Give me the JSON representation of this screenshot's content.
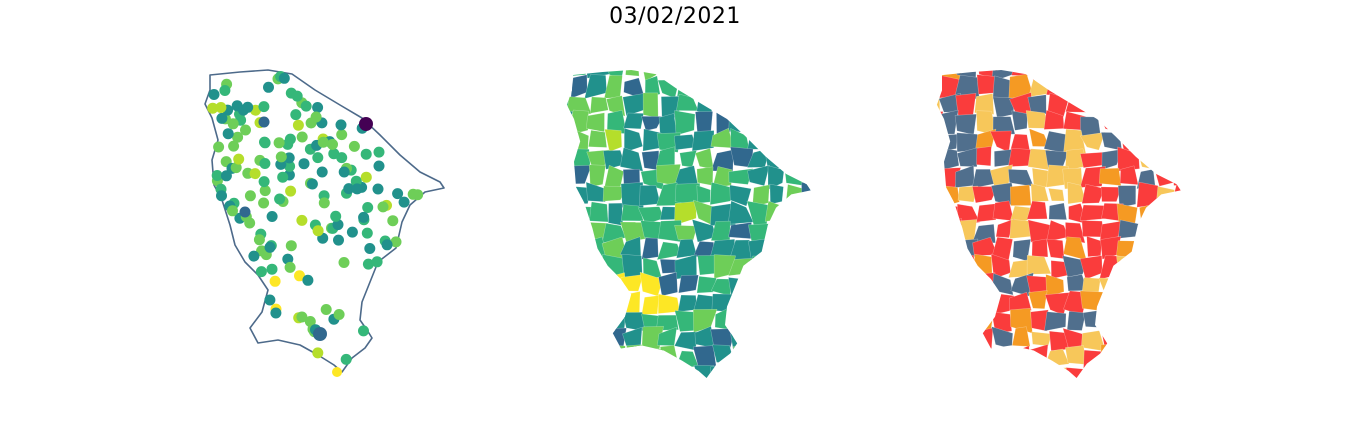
{
  "figure": {
    "title": "03/02/2021"
  },
  "panels": [
    {
      "id": "stations",
      "kind": "scatter-points-on-outline",
      "outline_color": "#4d6a8a",
      "palette": "viridis"
    },
    {
      "id": "municipalities-continuous",
      "kind": "choropleth",
      "palette": "viridis"
    },
    {
      "id": "municipalities-categorical",
      "kind": "choropleth-classes",
      "class_colors": [
        "#506f8d",
        "#fa3c3c",
        "#f59a23",
        "#f7c75a"
      ]
    }
  ],
  "colors": {
    "viridis": [
      "#440154",
      "#31688e",
      "#21918c",
      "#35b779",
      "#6ece58",
      "#b5de2b",
      "#fde725"
    ],
    "categorical": [
      "#506f8d",
      "#fa3c3c",
      "#f59a23",
      "#f7c75a"
    ]
  }
}
